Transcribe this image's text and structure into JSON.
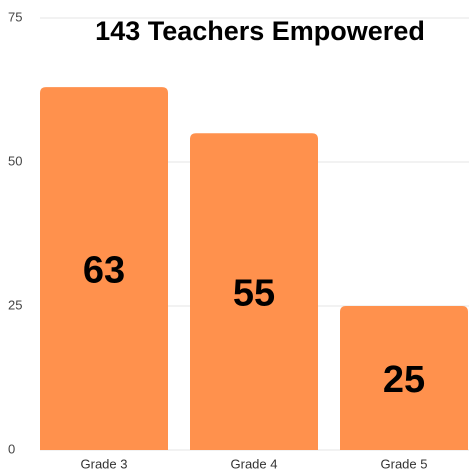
{
  "chart_data": {
    "type": "bar",
    "title": "143 Teachers Empowered",
    "categories": [
      "Grade 3",
      "Grade 4",
      "Grade 5"
    ],
    "values": [
      63,
      55,
      25
    ],
    "color": "#ff914d",
    "ylim": [
      0,
      75
    ],
    "yticks": [
      0,
      25,
      50,
      75
    ],
    "grid": true
  }
}
